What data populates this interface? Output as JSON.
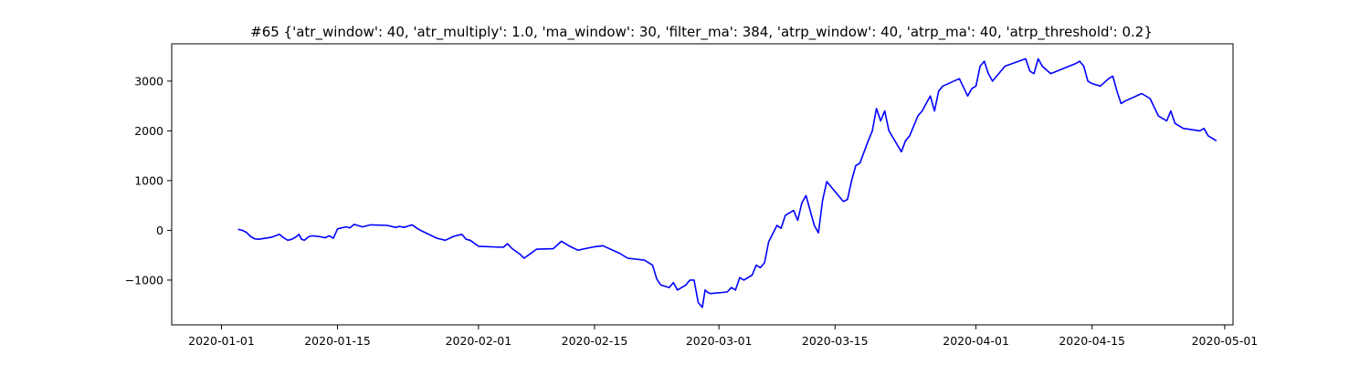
{
  "chart_data": {
    "type": "line",
    "title": "#65 {'atr_window': 40, 'atr_multiply': 1.0, 'ma_window': 30, 'filter_ma': 384, 'atrp_window': 40, 'atrp_ma': 40, 'atrp_threshold': 0.2}",
    "xlabel": "",
    "ylabel": "",
    "x_axis_type": "date",
    "xlim": [
      "2019-12-26",
      "2020-05-02"
    ],
    "ylim": [
      -1900,
      3750
    ],
    "x_ticks": [
      "2020-01-01",
      "2020-01-15",
      "2020-02-01",
      "2020-02-15",
      "2020-03-01",
      "2020-03-15",
      "2020-04-01",
      "2020-04-15",
      "2020-05-01"
    ],
    "y_ticks": [
      -1000,
      0,
      1000,
      2000,
      3000
    ],
    "grid": false,
    "line_color": "#0000ff",
    "series": [
      {
        "x": [
          "2020-01-03",
          "2020-01-03",
          "2020-01-04",
          "2020-01-04",
          "2020-01-05",
          "2020-01-05",
          "2020-01-07",
          "2020-01-08",
          "2020-01-08",
          "2020-01-09",
          "2020-01-09",
          "2020-01-10",
          "2020-01-10",
          "2020-01-10",
          "2020-01-11",
          "2020-01-11",
          "2020-01-12",
          "2020-01-13",
          "2020-01-13",
          "2020-01-14",
          "2020-01-14",
          "2020-01-15",
          "2020-01-16",
          "2020-01-16",
          "2020-01-17",
          "2020-01-18",
          "2020-01-18",
          "2020-01-19",
          "2020-01-21",
          "2020-01-22",
          "2020-01-22",
          "2020-01-23",
          "2020-01-24",
          "2020-01-24",
          "2020-01-25",
          "2020-01-27",
          "2020-01-28",
          "2020-01-29",
          "2020-01-30",
          "2020-01-30",
          "2020-01-31",
          "2020-02-01",
          "2020-02-04",
          "2020-02-04",
          "2020-02-05",
          "2020-02-06",
          "2020-02-06",
          "2020-02-07",
          "2020-02-08",
          "2020-02-10",
          "2020-02-11",
          "2020-02-11",
          "2020-02-12",
          "2020-02-13",
          "2020-02-15",
          "2020-02-16",
          "2020-02-18",
          "2020-02-19",
          "2020-02-21",
          "2020-02-22",
          "2020-02-22",
          "2020-02-23",
          "2020-02-24",
          "2020-02-24",
          "2020-02-25",
          "2020-02-26",
          "2020-02-26",
          "2020-02-27",
          "2020-02-27",
          "2020-02-28",
          "2020-02-28",
          "2020-02-28",
          "2020-02-29",
          "2020-03-02",
          "2020-03-02",
          "2020-03-03",
          "2020-03-03",
          "2020-03-04",
          "2020-03-05",
          "2020-03-05",
          "2020-03-06",
          "2020-03-06",
          "2020-03-07",
          "2020-03-08",
          "2020-03-08",
          "2020-03-09",
          "2020-03-10",
          "2020-03-10",
          "2020-03-11",
          "2020-03-11",
          "2020-03-12",
          "2020-03-12",
          "2020-03-13",
          "2020-03-13",
          "2020-03-14",
          "2020-03-16",
          "2020-03-16",
          "2020-03-17",
          "2020-03-17",
          "2020-03-18",
          "2020-03-19",
          "2020-03-19",
          "2020-03-20",
          "2020-03-20",
          "2020-03-21",
          "2020-03-21",
          "2020-03-23",
          "2020-03-23",
          "2020-03-24",
          "2020-03-25",
          "2020-03-25",
          "2020-03-26",
          "2020-03-26",
          "2020-03-27",
          "2020-03-27",
          "2020-03-28",
          "2020-03-30",
          "2020-03-31",
          "2020-03-31",
          "2020-04-01",
          "2020-04-01",
          "2020-04-02",
          "2020-04-02",
          "2020-04-03",
          "2020-04-04",
          "2020-04-04",
          "2020-04-07",
          "2020-04-07",
          "2020-04-08",
          "2020-04-08",
          "2020-04-09",
          "2020-04-10",
          "2020-04-13",
          "2020-04-13",
          "2020-04-14",
          "2020-04-14",
          "2020-04-15",
          "2020-04-16",
          "2020-04-17",
          "2020-04-17",
          "2020-04-18",
          "2020-04-18",
          "2020-04-19",
          "2020-04-21",
          "2020-04-22",
          "2020-04-23",
          "2020-04-24",
          "2020-04-24",
          "2020-04-25",
          "2020-04-26",
          "2020-04-28",
          "2020-04-28",
          "2020-04-29",
          "2020-04-29",
          "2020-04-30"
        ],
        "y": [
          20,
          0,
          -40,
          -120,
          -170,
          -180,
          -140,
          -80,
          -150,
          -200,
          -180,
          -130,
          -80,
          -180,
          -200,
          -130,
          -110,
          -130,
          -150,
          -110,
          -160,
          30,
          70,
          50,
          120,
          70,
          90,
          110,
          100,
          60,
          80,
          60,
          110,
          50,
          0,
          -160,
          -200,
          -120,
          -80,
          -180,
          -200,
          -320,
          -340,
          -270,
          -360,
          -480,
          -560,
          -500,
          -380,
          -370,
          -220,
          -270,
          -320,
          -400,
          -330,
          -310,
          -460,
          -560,
          -600,
          -700,
          -980,
          -1100,
          -1150,
          -1050,
          -1200,
          -1100,
          -1000,
          -1000,
          -1450,
          -1550,
          -1200,
          -1250,
          -1270,
          -1240,
          -1150,
          -1200,
          -950,
          -1000,
          -900,
          -700,
          -750,
          -650,
          -230,
          100,
          40,
          300,
          400,
          200,
          550,
          700,
          400,
          100,
          -50,
          600,
          980,
          580,
          620,
          1000,
          1300,
          1350,
          1800,
          2000,
          2450,
          2200,
          2400,
          2000,
          1580,
          1800,
          1900,
          2300,
          2400,
          2550,
          2700,
          2400,
          2800,
          2900,
          3050,
          2700,
          2850,
          2900,
          3300,
          3400,
          3150,
          3000,
          3200,
          3300,
          3450,
          3200,
          3150,
          3450,
          3300,
          3150,
          3350,
          3400,
          3300,
          3000,
          2950,
          2900,
          3050,
          3100,
          2800,
          2550,
          2600,
          2750,
          2650,
          2300,
          2200,
          2400,
          2150,
          2050,
          2000,
          2050,
          1900,
          1850,
          1800
        ]
      }
    ]
  }
}
